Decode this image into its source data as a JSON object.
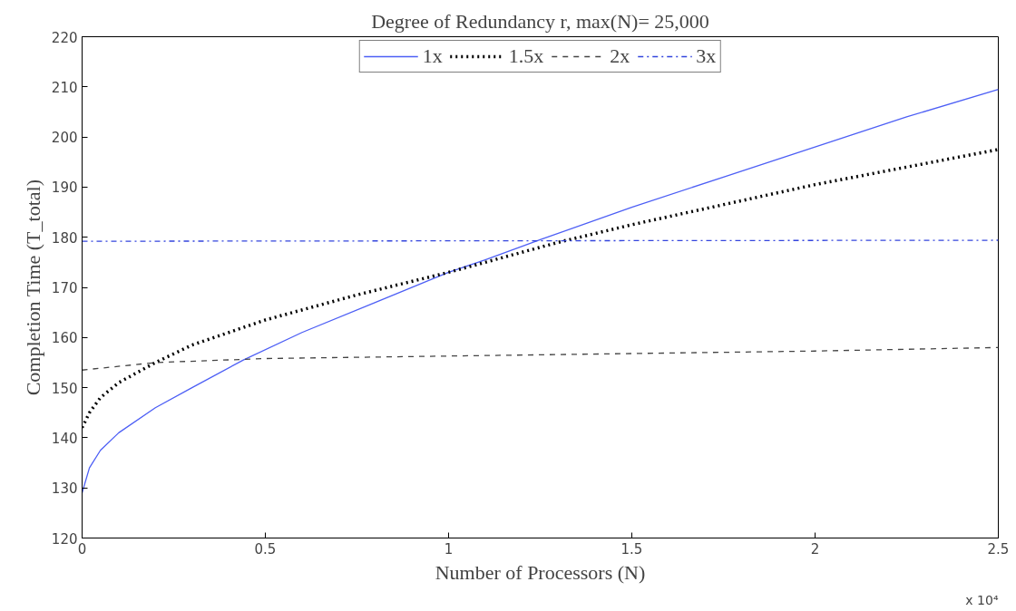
{
  "chart_data": {
    "type": "line",
    "title": "Degree of Redundancy r, max(N)= 25,000",
    "xlabel": "Number of Processors (N)",
    "ylabel": "Completion Time (T_total)",
    "xlim": [
      0,
      2.5
    ],
    "ylim": [
      120,
      220
    ],
    "xticks": [
      0,
      0.5,
      1,
      1.5,
      2,
      2.5
    ],
    "yticks": [
      120,
      130,
      140,
      150,
      160,
      170,
      180,
      190,
      200,
      210,
      220
    ],
    "annotations": [
      "x 10⁴"
    ],
    "grid": false,
    "legend": "top",
    "marker": "none",
    "series": [
      {
        "name": "1x",
        "color": "#4d5ff5",
        "line_style": "solid",
        "x": [
          0,
          0.02,
          0.05,
          0.1,
          0.2,
          0.3,
          0.44,
          0.6,
          0.8,
          1.0,
          1.1,
          1.25,
          1.5,
          1.75,
          2.0,
          2.25,
          2.5
        ],
        "values": [
          129,
          134,
          137.5,
          141,
          146,
          150,
          155.5,
          161,
          167,
          173,
          175.5,
          179.5,
          186,
          192,
          198,
          204,
          209.5
        ]
      },
      {
        "name": "1.5x",
        "color": "#000000",
        "line_style": "dotted",
        "x": [
          0,
          0.02,
          0.05,
          0.1,
          0.2,
          0.3,
          0.5,
          0.75,
          1.0,
          1.1,
          1.3,
          1.5,
          2.0,
          2.5
        ],
        "values": [
          142,
          145,
          148,
          151,
          155,
          158.5,
          163.5,
          168.5,
          173,
          175,
          179,
          182.5,
          190.5,
          197.5
        ]
      },
      {
        "name": "2x",
        "color": "#444444",
        "line_style": "dashed",
        "x": [
          0,
          0.2,
          0.5,
          1.0,
          1.5,
          2.0,
          2.5
        ],
        "values": [
          153.5,
          155,
          155.8,
          156.3,
          156.8,
          157.3,
          158
        ]
      },
      {
        "name": "3x",
        "color": "#3344dd",
        "line_style": "dashdot",
        "x": [
          0,
          2.5
        ],
        "values": [
          179.2,
          179.4
        ]
      }
    ]
  }
}
